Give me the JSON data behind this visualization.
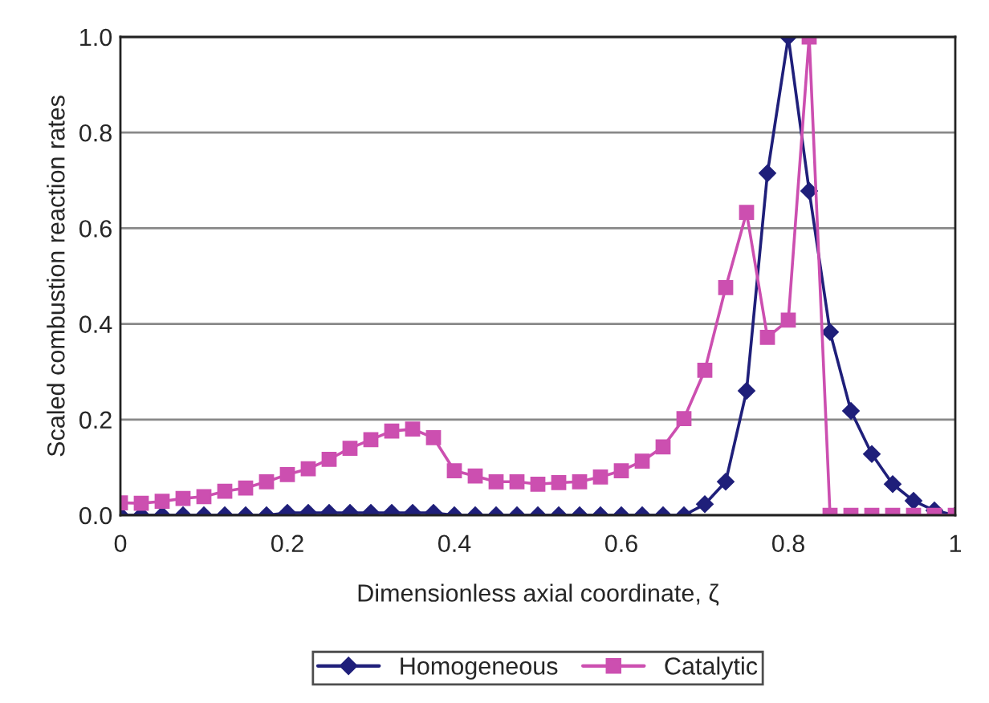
{
  "chart_data": {
    "type": "line",
    "xlabel": "Dimensionless axial coordinate, ζ",
    "ylabel": "Scaled combustion reaction rates",
    "x": [
      0,
      0.025,
      0.05,
      0.075,
      0.1,
      0.125,
      0.15,
      0.175,
      0.2,
      0.225,
      0.25,
      0.275,
      0.3,
      0.325,
      0.35,
      0.375,
      0.4,
      0.425,
      0.45,
      0.475,
      0.5,
      0.525,
      0.55,
      0.575,
      0.6,
      0.625,
      0.65,
      0.675,
      0.7,
      0.725,
      0.75,
      0.775,
      0.8,
      0.825,
      0.85,
      0.875,
      0.9,
      0.925,
      0.95,
      0.975,
      1.0
    ],
    "series": [
      {
        "name": "Homogeneous",
        "color": "#1f1f7a",
        "marker": "diamond",
        "values": [
          0,
          0,
          0,
          0,
          0,
          0,
          0,
          0,
          0.005,
          0.005,
          0.005,
          0.005,
          0.005,
          0.005,
          0.005,
          0.005,
          0,
          0,
          0,
          0,
          0,
          0,
          0,
          0,
          0,
          0,
          0,
          0,
          0.023,
          0.07,
          0.26,
          0.715,
          1.0,
          0.678,
          0.383,
          0.218,
          0.128,
          0.065,
          0.03,
          0.01,
          0
        ]
      },
      {
        "name": "Catalytic",
        "color": "#cc4fb0",
        "marker": "square",
        "values": [
          0.026,
          0.025,
          0.029,
          0.035,
          0.039,
          0.05,
          0.057,
          0.07,
          0.085,
          0.097,
          0.117,
          0.14,
          0.158,
          0.176,
          0.18,
          0.162,
          0.093,
          0.082,
          0.07,
          0.07,
          0.065,
          0.068,
          0.07,
          0.08,
          0.093,
          0.113,
          0.143,
          0.202,
          0.303,
          0.476,
          0.633,
          0.372,
          0.408,
          1.0,
          0,
          0,
          0,
          0,
          0,
          0,
          0
        ]
      }
    ],
    "xlim": [
      0,
      1
    ],
    "xticks": [
      0,
      0.2,
      0.4,
      0.6,
      0.8,
      1
    ],
    "ylim": [
      0,
      1.0
    ],
    "yticks": [
      {
        "value": 0,
        "label": "0.0"
      },
      {
        "value": 0.2,
        "label": "0.2"
      },
      {
        "value": 0.4,
        "label": "0.4"
      },
      {
        "value": 0.6,
        "label": "0.6"
      },
      {
        "value": 0.8,
        "label": "0.8"
      },
      {
        "value": 1.0,
        "label": "1.0"
      }
    ],
    "grid": "y",
    "legend": "bottom",
    "line_style": "solid"
  }
}
